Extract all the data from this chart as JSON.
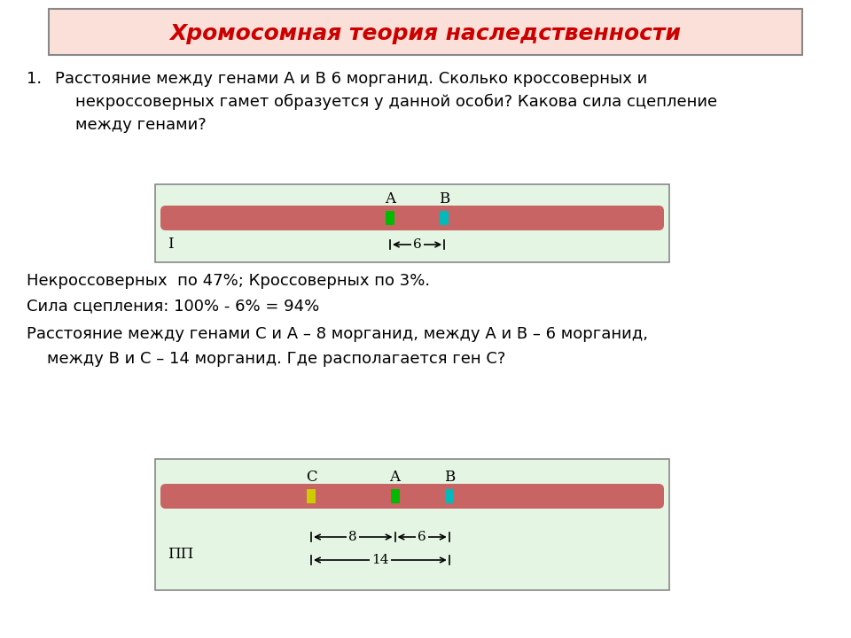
{
  "title": "Хромосомная теория наследственности",
  "title_color": "#CC0000",
  "title_bg": "#FAE0D8",
  "title_border": "#888888",
  "bg_color": "#FFFFFF",
  "question1_num": "1.",
  "question1_text": "Расстояние между генами А и В 6 морганид. Сколько кроссоверных и\n    некроссоверных гамет образуется у данной особи? Какова сила сцепление\n    между генами?",
  "diagram1_bg": "#E4F5E4",
  "diagram1_border": "#888888",
  "chrom1_color": "#C86464",
  "gene_A1_color": "#00BB00",
  "gene_B1_color": "#00BBBB",
  "gene_A1_label": "A",
  "gene_B1_label": "B",
  "diagram1_label": "I",
  "diagram1_distance": "6",
  "answer1_line1": "Некроссоверных  по 47%; Кроссоверных по 3%.",
  "answer1_line2": "Сила сцепления: 100% - 6% = 94%",
  "answer1_line3": "Расстояние между генами С и А – 8 морганид, между А и В – 6 морганид,",
  "answer1_line4": "    между В и С – 14 морганид. Где располагается ген С?",
  "diagram2_bg": "#E4F5E4",
  "diagram2_border": "#888888",
  "chrom2_color": "#C86464",
  "gene_C2_color": "#CCCC00",
  "gene_A2_color": "#00BB00",
  "gene_B2_color": "#00BBBB",
  "gene_C2_label": "C",
  "gene_A2_label": "A",
  "gene_B2_label": "B",
  "diagram2_label": "ΠΠ",
  "diagram2_dist1": "8",
  "diagram2_dist2": "6",
  "diagram2_dist3": "14"
}
